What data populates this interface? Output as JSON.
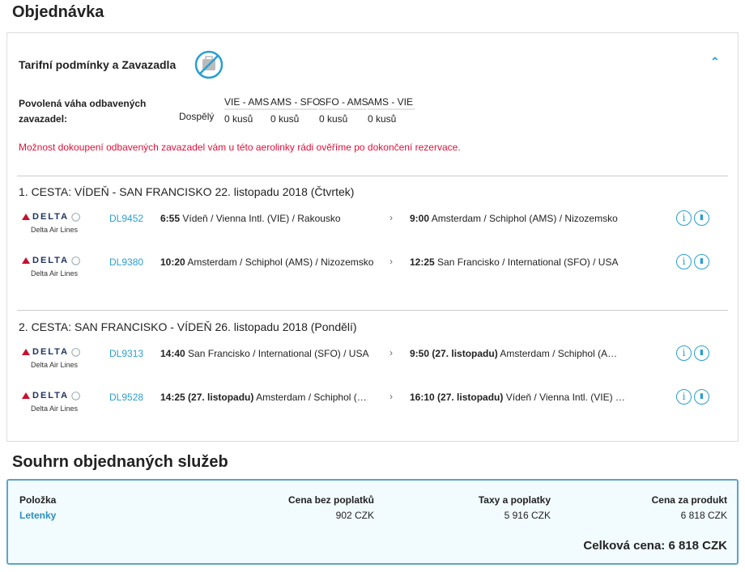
{
  "page_title": "Objednávka",
  "fare": {
    "title": "Tarifní podmínky a Zavazadla",
    "baggage_label": "Povolená váha odbavených zavazadel:",
    "passenger_type": "Dospělý",
    "segments": [
      {
        "route": "VIE - AMS",
        "allowance": "0 kusů"
      },
      {
        "route": "AMS - SFO",
        "allowance": "0 kusů"
      },
      {
        "route": "SFO - AMS",
        "allowance": "0 kusů"
      },
      {
        "route": "AMS - VIE",
        "allowance": "0 kusů"
      }
    ],
    "warning": "Možnost dokoupení odbavených zavazadel vám u této aerolinky rádi ověříme po dokončení rezervace."
  },
  "journeys": [
    {
      "title": "1. CESTA: VÍDEŇ - SAN FRANCISKO 22. listopadu 2018 (Čtvrtek)",
      "flights": [
        {
          "airline": "DELTA",
          "airline_name": "Delta Air Lines",
          "number": "DL9452",
          "dep_time": "6:55",
          "dep_note": "",
          "dep_place": "Vídeň / Vienna Intl. (VIE) / Rakousko",
          "arr_time": "9:00",
          "arr_note": "",
          "arr_place": "Amsterdam / Schiphol (AMS) / Nizozemsko"
        },
        {
          "airline": "DELTA",
          "airline_name": "Delta Air Lines",
          "number": "DL9380",
          "dep_time": "10:20",
          "dep_note": "",
          "dep_place": "Amsterdam / Schiphol (AMS) / Nizozemsko",
          "arr_time": "12:25",
          "arr_note": "",
          "arr_place": "San Francisko / International (SFO) / USA"
        }
      ]
    },
    {
      "title": "2. CESTA: SAN FRANCISKO - VÍDEŇ 26. listopadu 2018 (Pondělí)",
      "flights": [
        {
          "airline": "DELTA",
          "airline_name": "Delta Air Lines",
          "number": "DL9313",
          "dep_time": "14:40",
          "dep_note": "",
          "dep_place": "San Francisko / International (SFO) / USA",
          "arr_time": "9:50",
          "arr_note": "(27. listopadu)",
          "arr_place": "Amsterdam / Schiphol (A…"
        },
        {
          "airline": "DELTA",
          "airline_name": "Delta Air Lines",
          "number": "DL9528",
          "dep_time": "14:25",
          "dep_note": "(27. listopadu)",
          "dep_place": "Amsterdam / Schiphol (…",
          "arr_time": "16:10",
          "arr_note": "(27. listopadu)",
          "arr_place": "Vídeň / Vienna Intl. (VIE) …"
        }
      ]
    }
  ],
  "summary": {
    "title": "Souhrn objednaných služeb",
    "headers": [
      "Položka",
      "Cena bez poplatků",
      "Taxy a poplatky",
      "Cena za produkt"
    ],
    "row": [
      "Letenky",
      "902 CZK",
      "5 916 CZK",
      "6 818 CZK"
    ],
    "total": "Celková cena: 6 818 CZK"
  },
  "colors": {
    "accent": "#2a9fd0",
    "warning": "#e0103a",
    "summary_border": "#5da4c8"
  }
}
